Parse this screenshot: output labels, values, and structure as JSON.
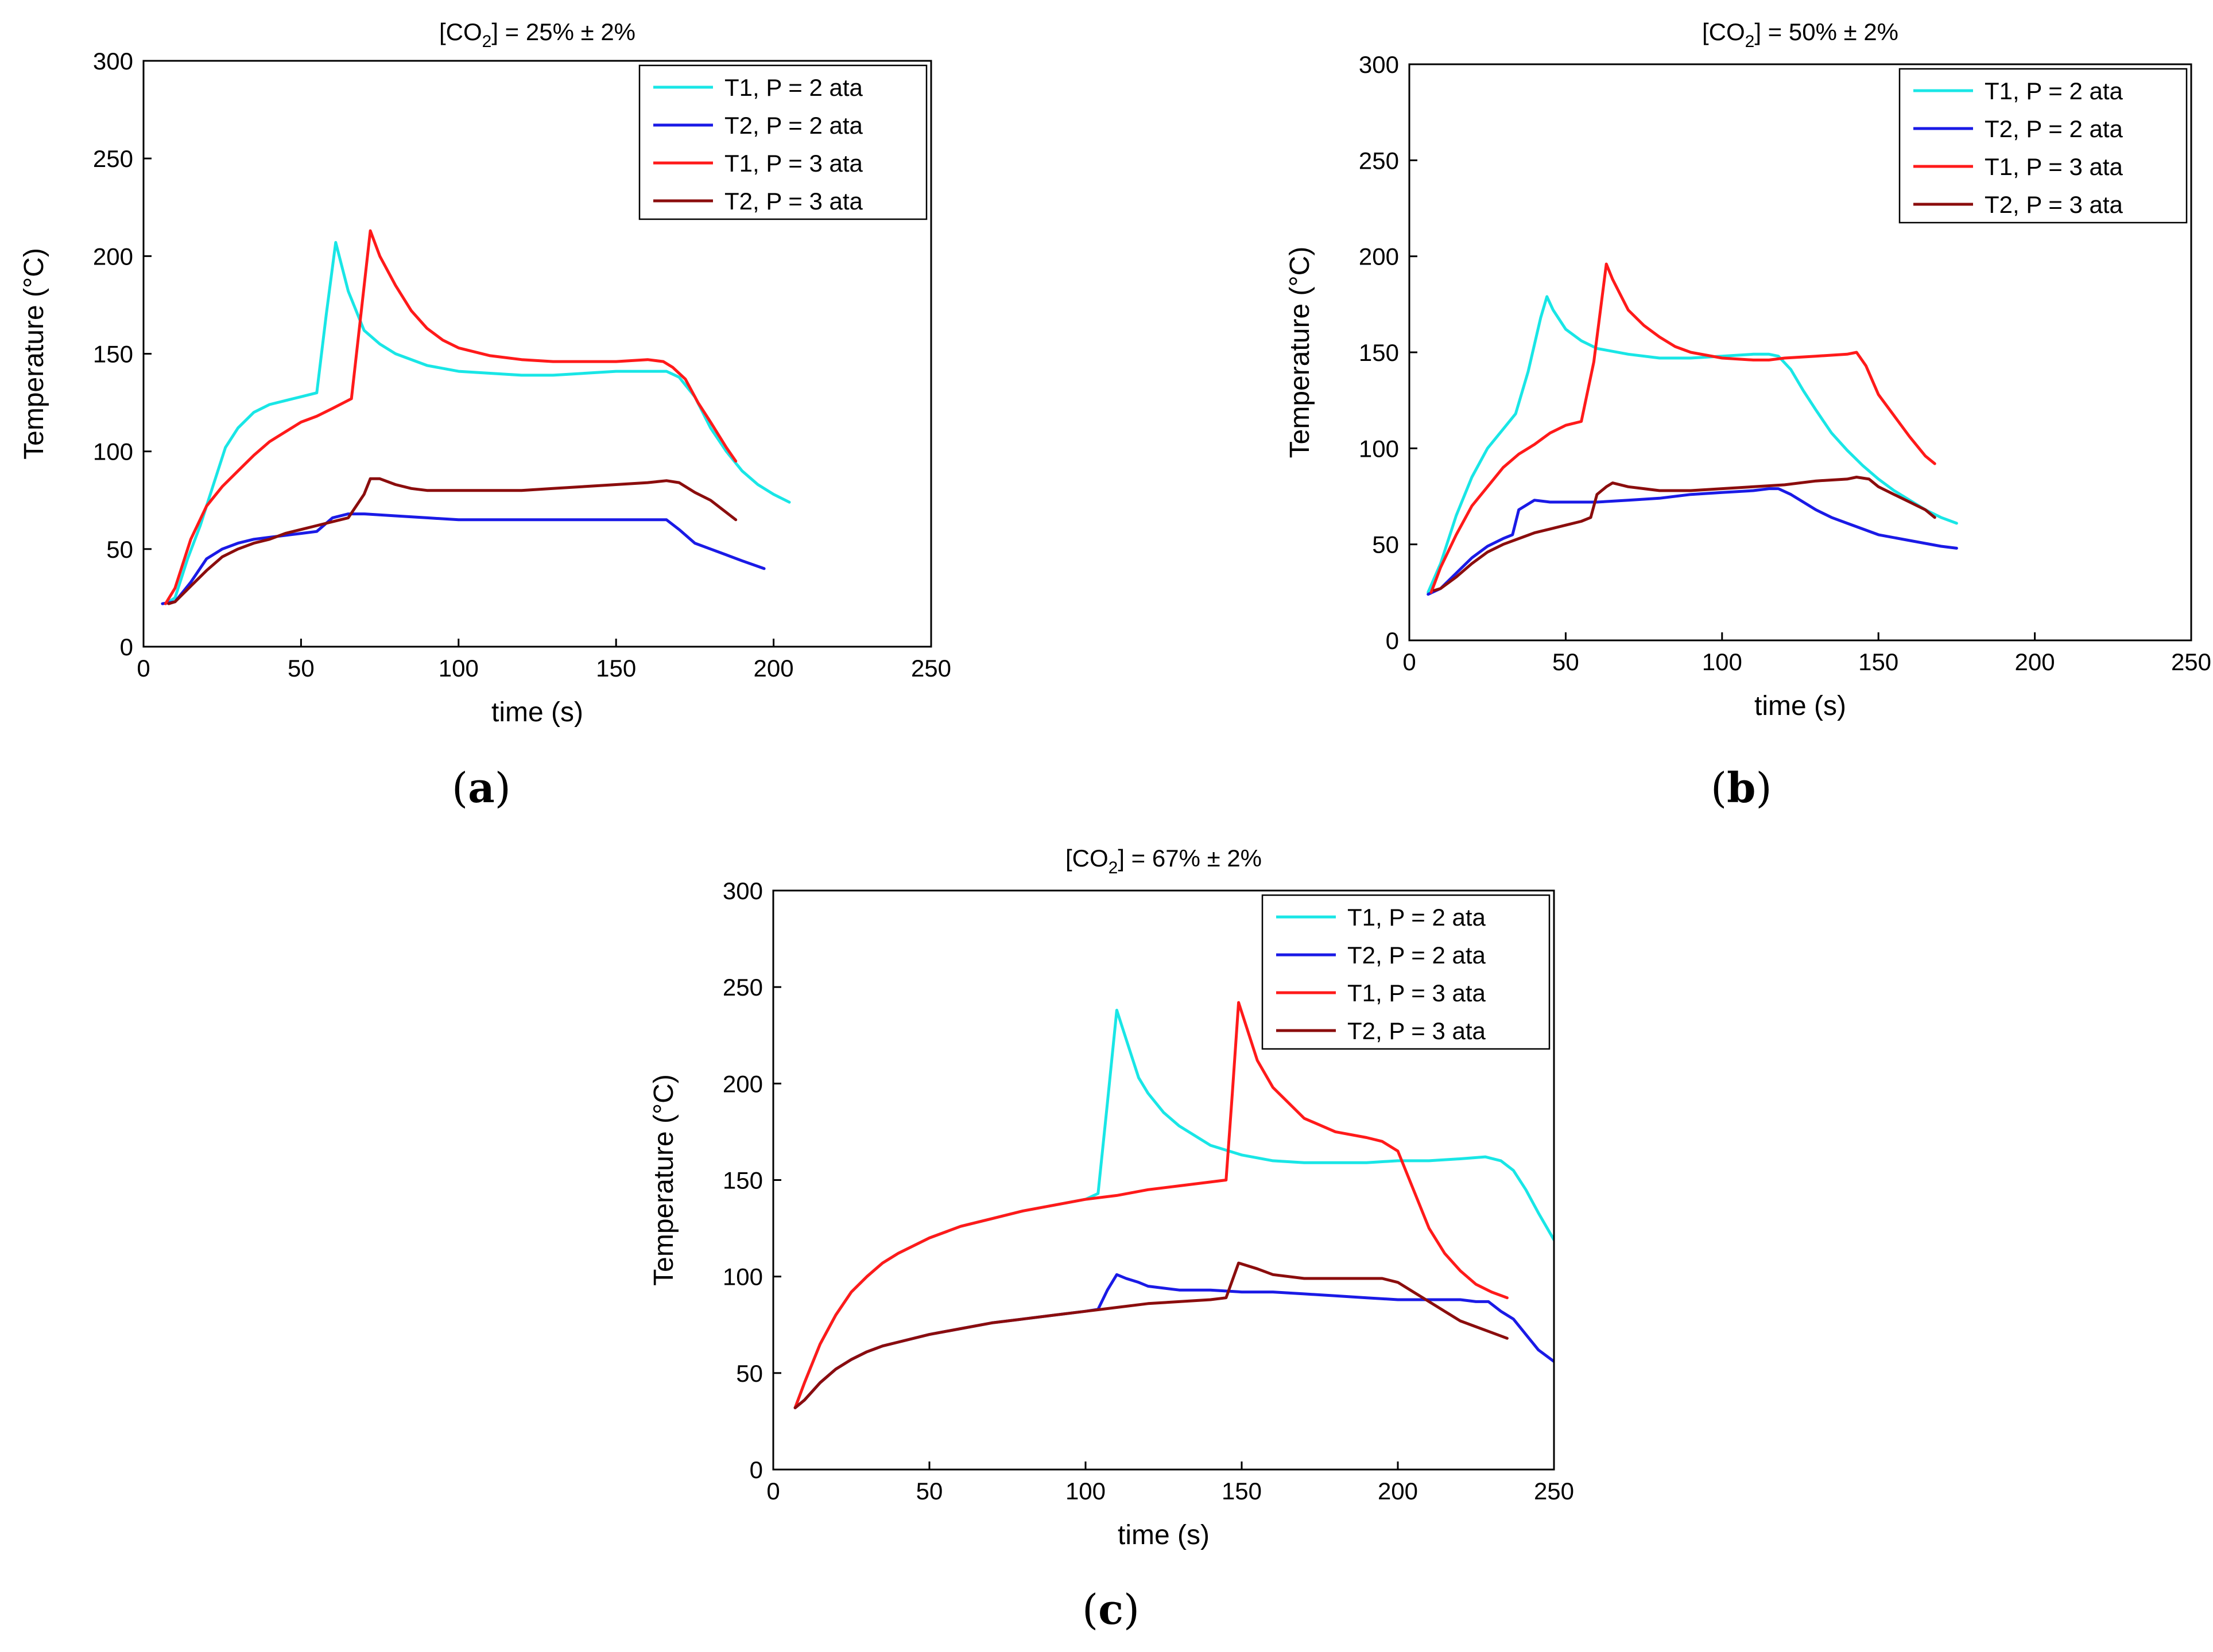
{
  "figure": {
    "panel_labels": [
      {
        "open": "(",
        "letter": "a",
        "close": ")"
      },
      {
        "open": "(",
        "letter": "b",
        "close": ")"
      },
      {
        "open": "(",
        "letter": "c",
        "close": ")"
      }
    ]
  },
  "chart_data": [
    {
      "type": "line",
      "id": "a",
      "title_prefix": "[CO",
      "title_sub": "2",
      "title_suffix": "] = 25% ± 2%",
      "xlabel": "time (s)",
      "ylabel": "Temperature (°C)",
      "xlim": [
        0,
        250
      ],
      "ylim": [
        0,
        300
      ],
      "xticks": [
        0,
        50,
        100,
        150,
        200,
        250
      ],
      "yticks": [
        0,
        50,
        100,
        150,
        200,
        250,
        300
      ],
      "legend_position": "top-right",
      "series": [
        {
          "name": "T1, P = 2 ata",
          "color": "#19e6e6",
          "x": [
            7,
            10,
            14,
            18,
            22,
            26,
            30,
            35,
            40,
            45,
            50,
            55,
            58,
            61,
            65,
            70,
            75,
            80,
            90,
            100,
            110,
            120,
            130,
            140,
            150,
            160,
            166,
            170,
            175,
            180,
            185,
            190,
            195,
            200,
            205
          ],
          "y": [
            22,
            25,
            45,
            62,
            82,
            102,
            112,
            120,
            124,
            126,
            128,
            130,
            170,
            207,
            182,
            162,
            155,
            150,
            144,
            141,
            140,
            139,
            139,
            140,
            141,
            141,
            141,
            138,
            128,
            112,
            100,
            90,
            83,
            78,
            74
          ]
        },
        {
          "name": "T2, P = 2 ata",
          "color": "#1a1ae6",
          "x": [
            6,
            10,
            15,
            20,
            25,
            30,
            35,
            40,
            45,
            50,
            55,
            60,
            65,
            70,
            80,
            90,
            100,
            110,
            120,
            130,
            140,
            150,
            160,
            166,
            170,
            175,
            180,
            185,
            190,
            197
          ],
          "y": [
            22,
            23,
            33,
            45,
            50,
            53,
            55,
            56,
            57,
            58,
            59,
            66,
            68,
            68,
            67,
            66,
            65,
            65,
            65,
            65,
            65,
            65,
            65,
            65,
            60,
            53,
            50,
            47,
            44,
            40
          ]
        },
        {
          "name": "T1, P = 3 ata",
          "color": "#ff1a1a",
          "x": [
            7,
            10,
            15,
            20,
            25,
            30,
            35,
            40,
            45,
            50,
            55,
            60,
            66,
            72,
            75,
            80,
            85,
            90,
            95,
            100,
            110,
            120,
            130,
            140,
            150,
            160,
            165,
            168,
            172,
            176,
            180,
            185,
            188
          ],
          "y": [
            22,
            30,
            55,
            72,
            82,
            90,
            98,
            105,
            110,
            115,
            118,
            122,
            127,
            213,
            200,
            185,
            172,
            163,
            157,
            153,
            149,
            147,
            146,
            146,
            146,
            147,
            146,
            143,
            137,
            125,
            115,
            102,
            95
          ]
        },
        {
          "name": "T2, P = 3 ata",
          "color": "#8b0d0d",
          "x": [
            8,
            10,
            15,
            20,
            25,
            30,
            35,
            40,
            45,
            50,
            55,
            60,
            65,
            70,
            72,
            75,
            80,
            85,
            90,
            100,
            110,
            120,
            130,
            140,
            150,
            160,
            166,
            170,
            175,
            180,
            188
          ],
          "y": [
            22,
            23,
            31,
            39,
            46,
            50,
            53,
            55,
            58,
            60,
            62,
            64,
            66,
            78,
            86,
            86,
            83,
            81,
            80,
            80,
            80,
            80,
            81,
            82,
            83,
            84,
            85,
            84,
            79,
            75,
            65
          ]
        }
      ]
    },
    {
      "type": "line",
      "id": "b",
      "title_prefix": "[CO",
      "title_sub": "2",
      "title_suffix": "] = 50% ± 2%",
      "xlabel": "time (s)",
      "ylabel": "Temperature (°C)",
      "xlim": [
        0,
        250
      ],
      "ylim": [
        0,
        300
      ],
      "xticks": [
        0,
        50,
        100,
        150,
        200,
        250
      ],
      "yticks": [
        0,
        50,
        100,
        150,
        200,
        250,
        300
      ],
      "legend_position": "top-right",
      "series": [
        {
          "name": "T1, P = 2 ata",
          "color": "#19e6e6",
          "x": [
            6,
            10,
            15,
            20,
            25,
            30,
            34,
            38,
            42,
            44,
            46,
            50,
            55,
            60,
            70,
            80,
            90,
            100,
            110,
            115,
            118,
            122,
            126,
            130,
            135,
            140,
            145,
            150,
            155,
            160,
            165,
            170,
            175
          ],
          "y": [
            25,
            40,
            65,
            85,
            100,
            110,
            118,
            140,
            168,
            179,
            172,
            162,
            156,
            152,
            149,
            147,
            147,
            148,
            149,
            149,
            148,
            141,
            130,
            120,
            108,
            99,
            91,
            84,
            78,
            73,
            68,
            64,
            61
          ]
        },
        {
          "name": "T2, P = 2 ata",
          "color": "#1a1ae6",
          "x": [
            6,
            10,
            15,
            20,
            25,
            30,
            33,
            35,
            40,
            45,
            50,
            60,
            70,
            80,
            90,
            100,
            110,
            115,
            118,
            122,
            126,
            130,
            135,
            140,
            145,
            150,
            160,
            170,
            175
          ],
          "y": [
            24,
            27,
            35,
            43,
            49,
            53,
            55,
            68,
            73,
            72,
            72,
            72,
            73,
            74,
            76,
            77,
            78,
            79,
            79,
            76,
            72,
            68,
            64,
            61,
            58,
            55,
            52,
            49,
            48
          ]
        },
        {
          "name": "T1, P = 3 ata",
          "color": "#ff1a1a",
          "x": [
            7,
            10,
            15,
            20,
            25,
            30,
            35,
            40,
            45,
            50,
            55,
            59,
            63,
            65,
            70,
            75,
            80,
            85,
            90,
            100,
            110,
            115,
            120,
            130,
            140,
            143,
            146,
            150,
            155,
            160,
            165,
            168
          ],
          "y": [
            25,
            38,
            55,
            70,
            80,
            90,
            97,
            102,
            108,
            112,
            114,
            145,
            196,
            188,
            172,
            164,
            158,
            153,
            150,
            147,
            146,
            146,
            147,
            148,
            149,
            150,
            143,
            128,
            117,
            106,
            96,
            92
          ]
        },
        {
          "name": "T2, P = 3 ata",
          "color": "#8b0d0d",
          "x": [
            8,
            10,
            15,
            20,
            25,
            30,
            35,
            40,
            45,
            50,
            55,
            58,
            60,
            63,
            65,
            70,
            75,
            80,
            90,
            100,
            110,
            120,
            130,
            140,
            143,
            147,
            150,
            155,
            160,
            165,
            168
          ],
          "y": [
            26,
            27,
            33,
            40,
            46,
            50,
            53,
            56,
            58,
            60,
            62,
            64,
            76,
            80,
            82,
            80,
            79,
            78,
            78,
            79,
            80,
            81,
            83,
            84,
            85,
            84,
            80,
            76,
            72,
            68,
            64
          ]
        }
      ]
    },
    {
      "type": "line",
      "id": "c",
      "title_prefix": "[CO",
      "title_sub": "2",
      "title_suffix": "] = 67% ± 2%",
      "xlabel": "time (s)",
      "ylabel": "Temperature (°C)",
      "xlim": [
        0,
        250
      ],
      "ylim": [
        0,
        300
      ],
      "xticks": [
        0,
        50,
        100,
        150,
        200,
        250
      ],
      "yticks": [
        0,
        50,
        100,
        150,
        200,
        250,
        300
      ],
      "legend_position": "top-right",
      "series": [
        {
          "name": "T1, P = 2 ata",
          "color": "#19e6e6",
          "x": [
            7,
            10,
            15,
            20,
            25,
            30,
            35,
            40,
            50,
            60,
            70,
            80,
            90,
            100,
            104,
            107,
            110,
            113,
            117,
            120,
            125,
            130,
            140,
            150,
            160,
            170,
            180,
            190,
            200,
            210,
            220,
            228,
            233,
            237,
            241,
            245,
            250
          ],
          "y": [
            32,
            45,
            65,
            80,
            92,
            100,
            107,
            112,
            120,
            126,
            130,
            134,
            137,
            140,
            143,
            190,
            238,
            223,
            203,
            195,
            185,
            178,
            168,
            163,
            160,
            159,
            159,
            159,
            160,
            160,
            161,
            162,
            160,
            155,
            145,
            133,
            119
          ]
        },
        {
          "name": "T2, P = 2 ata",
          "color": "#1a1ae6",
          "x": [
            7,
            10,
            15,
            20,
            25,
            30,
            35,
            40,
            50,
            60,
            70,
            80,
            90,
            100,
            104,
            107,
            110,
            113,
            117,
            120,
            130,
            140,
            150,
            160,
            170,
            180,
            190,
            200,
            210,
            220,
            225,
            229,
            233,
            237,
            241,
            245,
            250
          ],
          "y": [
            32,
            36,
            45,
            52,
            57,
            61,
            64,
            66,
            70,
            73,
            76,
            78,
            80,
            82,
            83,
            93,
            101,
            99,
            97,
            95,
            93,
            93,
            92,
            92,
            91,
            90,
            89,
            88,
            88,
            88,
            87,
            87,
            82,
            78,
            70,
            62,
            56
          ]
        },
        {
          "name": "T1, P = 3 ata",
          "color": "#ff1a1a",
          "x": [
            7,
            10,
            15,
            20,
            25,
            30,
            35,
            40,
            50,
            60,
            70,
            80,
            90,
            100,
            110,
            120,
            130,
            140,
            145,
            147,
            149,
            155,
            160,
            170,
            180,
            190,
            195,
            200,
            205,
            210,
            215,
            220,
            225,
            230,
            235
          ],
          "y": [
            32,
            45,
            65,
            80,
            92,
            100,
            107,
            112,
            120,
            126,
            130,
            134,
            137,
            140,
            142,
            145,
            147,
            149,
            150,
            195,
            242,
            212,
            198,
            182,
            175,
            172,
            170,
            165,
            145,
            125,
            112,
            103,
            96,
            92,
            89
          ]
        },
        {
          "name": "T2, P = 3 ata",
          "color": "#8b0d0d",
          "x": [
            7,
            10,
            15,
            20,
            25,
            30,
            35,
            40,
            50,
            60,
            70,
            80,
            90,
            100,
            110,
            120,
            130,
            140,
            145,
            147,
            149,
            155,
            160,
            170,
            180,
            190,
            195,
            200,
            205,
            210,
            215,
            220,
            225,
            230,
            235
          ],
          "y": [
            32,
            36,
            45,
            52,
            57,
            61,
            64,
            66,
            70,
            73,
            76,
            78,
            80,
            82,
            84,
            86,
            87,
            88,
            89,
            98,
            107,
            104,
            101,
            99,
            99,
            99,
            99,
            97,
            92,
            87,
            82,
            77,
            74,
            71,
            68
          ]
        }
      ]
    }
  ]
}
